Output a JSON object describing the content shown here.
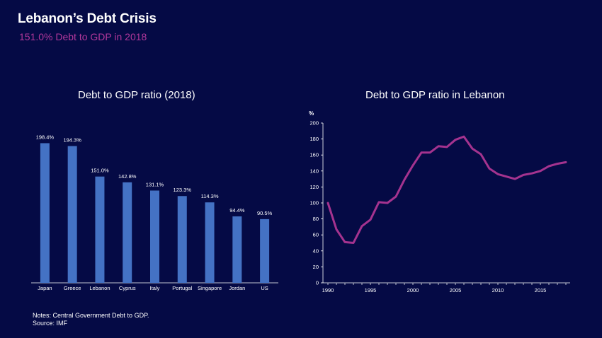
{
  "header": {
    "title": "Lebanon’s Debt Crisis",
    "subtitle": "151.0% Debt to GDP in 2018"
  },
  "notes": {
    "line1": "Notes: Central Government Debt to GDP.",
    "line2": "Source: IMF"
  },
  "colors": {
    "background": "#050a45",
    "bar": "#4472c4",
    "line": "#a5338f",
    "subtitle": "#b3389b"
  },
  "chart_data": [
    {
      "type": "bar",
      "title": "Debt to GDP ratio (2018)",
      "categories": [
        "Japan",
        "Greece",
        "Lebanon",
        "Cyprus",
        "Italy",
        "Portugal",
        "Singapore",
        "Jordan",
        "US"
      ],
      "values": [
        198.4,
        194.3,
        151.0,
        142.8,
        131.1,
        123.3,
        114.3,
        94.4,
        90.5
      ],
      "data_labels": [
        "198.4%",
        "194.3%",
        "151.0%",
        "142.8%",
        "131.1%",
        "123.3%",
        "114.3%",
        "94.4%",
        "90.5%"
      ],
      "ylim": [
        0,
        225
      ],
      "grid": false
    },
    {
      "type": "line",
      "title": "Debt to GDP ratio in Lebanon",
      "ylabel": "%",
      "x": [
        1990,
        1991,
        1992,
        1993,
        1994,
        1995,
        1996,
        1997,
        1998,
        1999,
        2000,
        2001,
        2002,
        2003,
        2004,
        2005,
        2006,
        2007,
        2008,
        2009,
        2010,
        2011,
        2012,
        2013,
        2014,
        2015,
        2016,
        2017,
        2018
      ],
      "y": [
        100,
        67,
        51,
        50,
        71,
        79,
        101,
        100,
        108,
        129,
        147,
        163,
        163,
        171,
        170,
        179,
        183,
        168,
        161,
        143,
        136,
        133,
        130,
        135,
        137,
        140,
        146,
        149,
        151
      ],
      "xticks": [
        1990,
        1995,
        2000,
        2005,
        2010,
        2015
      ],
      "yticks": [
        0,
        20,
        40,
        60,
        80,
        100,
        120,
        140,
        160,
        180,
        200
      ],
      "xlim": [
        1990,
        2018
      ],
      "ylim": [
        0,
        200
      ],
      "grid": false
    }
  ]
}
